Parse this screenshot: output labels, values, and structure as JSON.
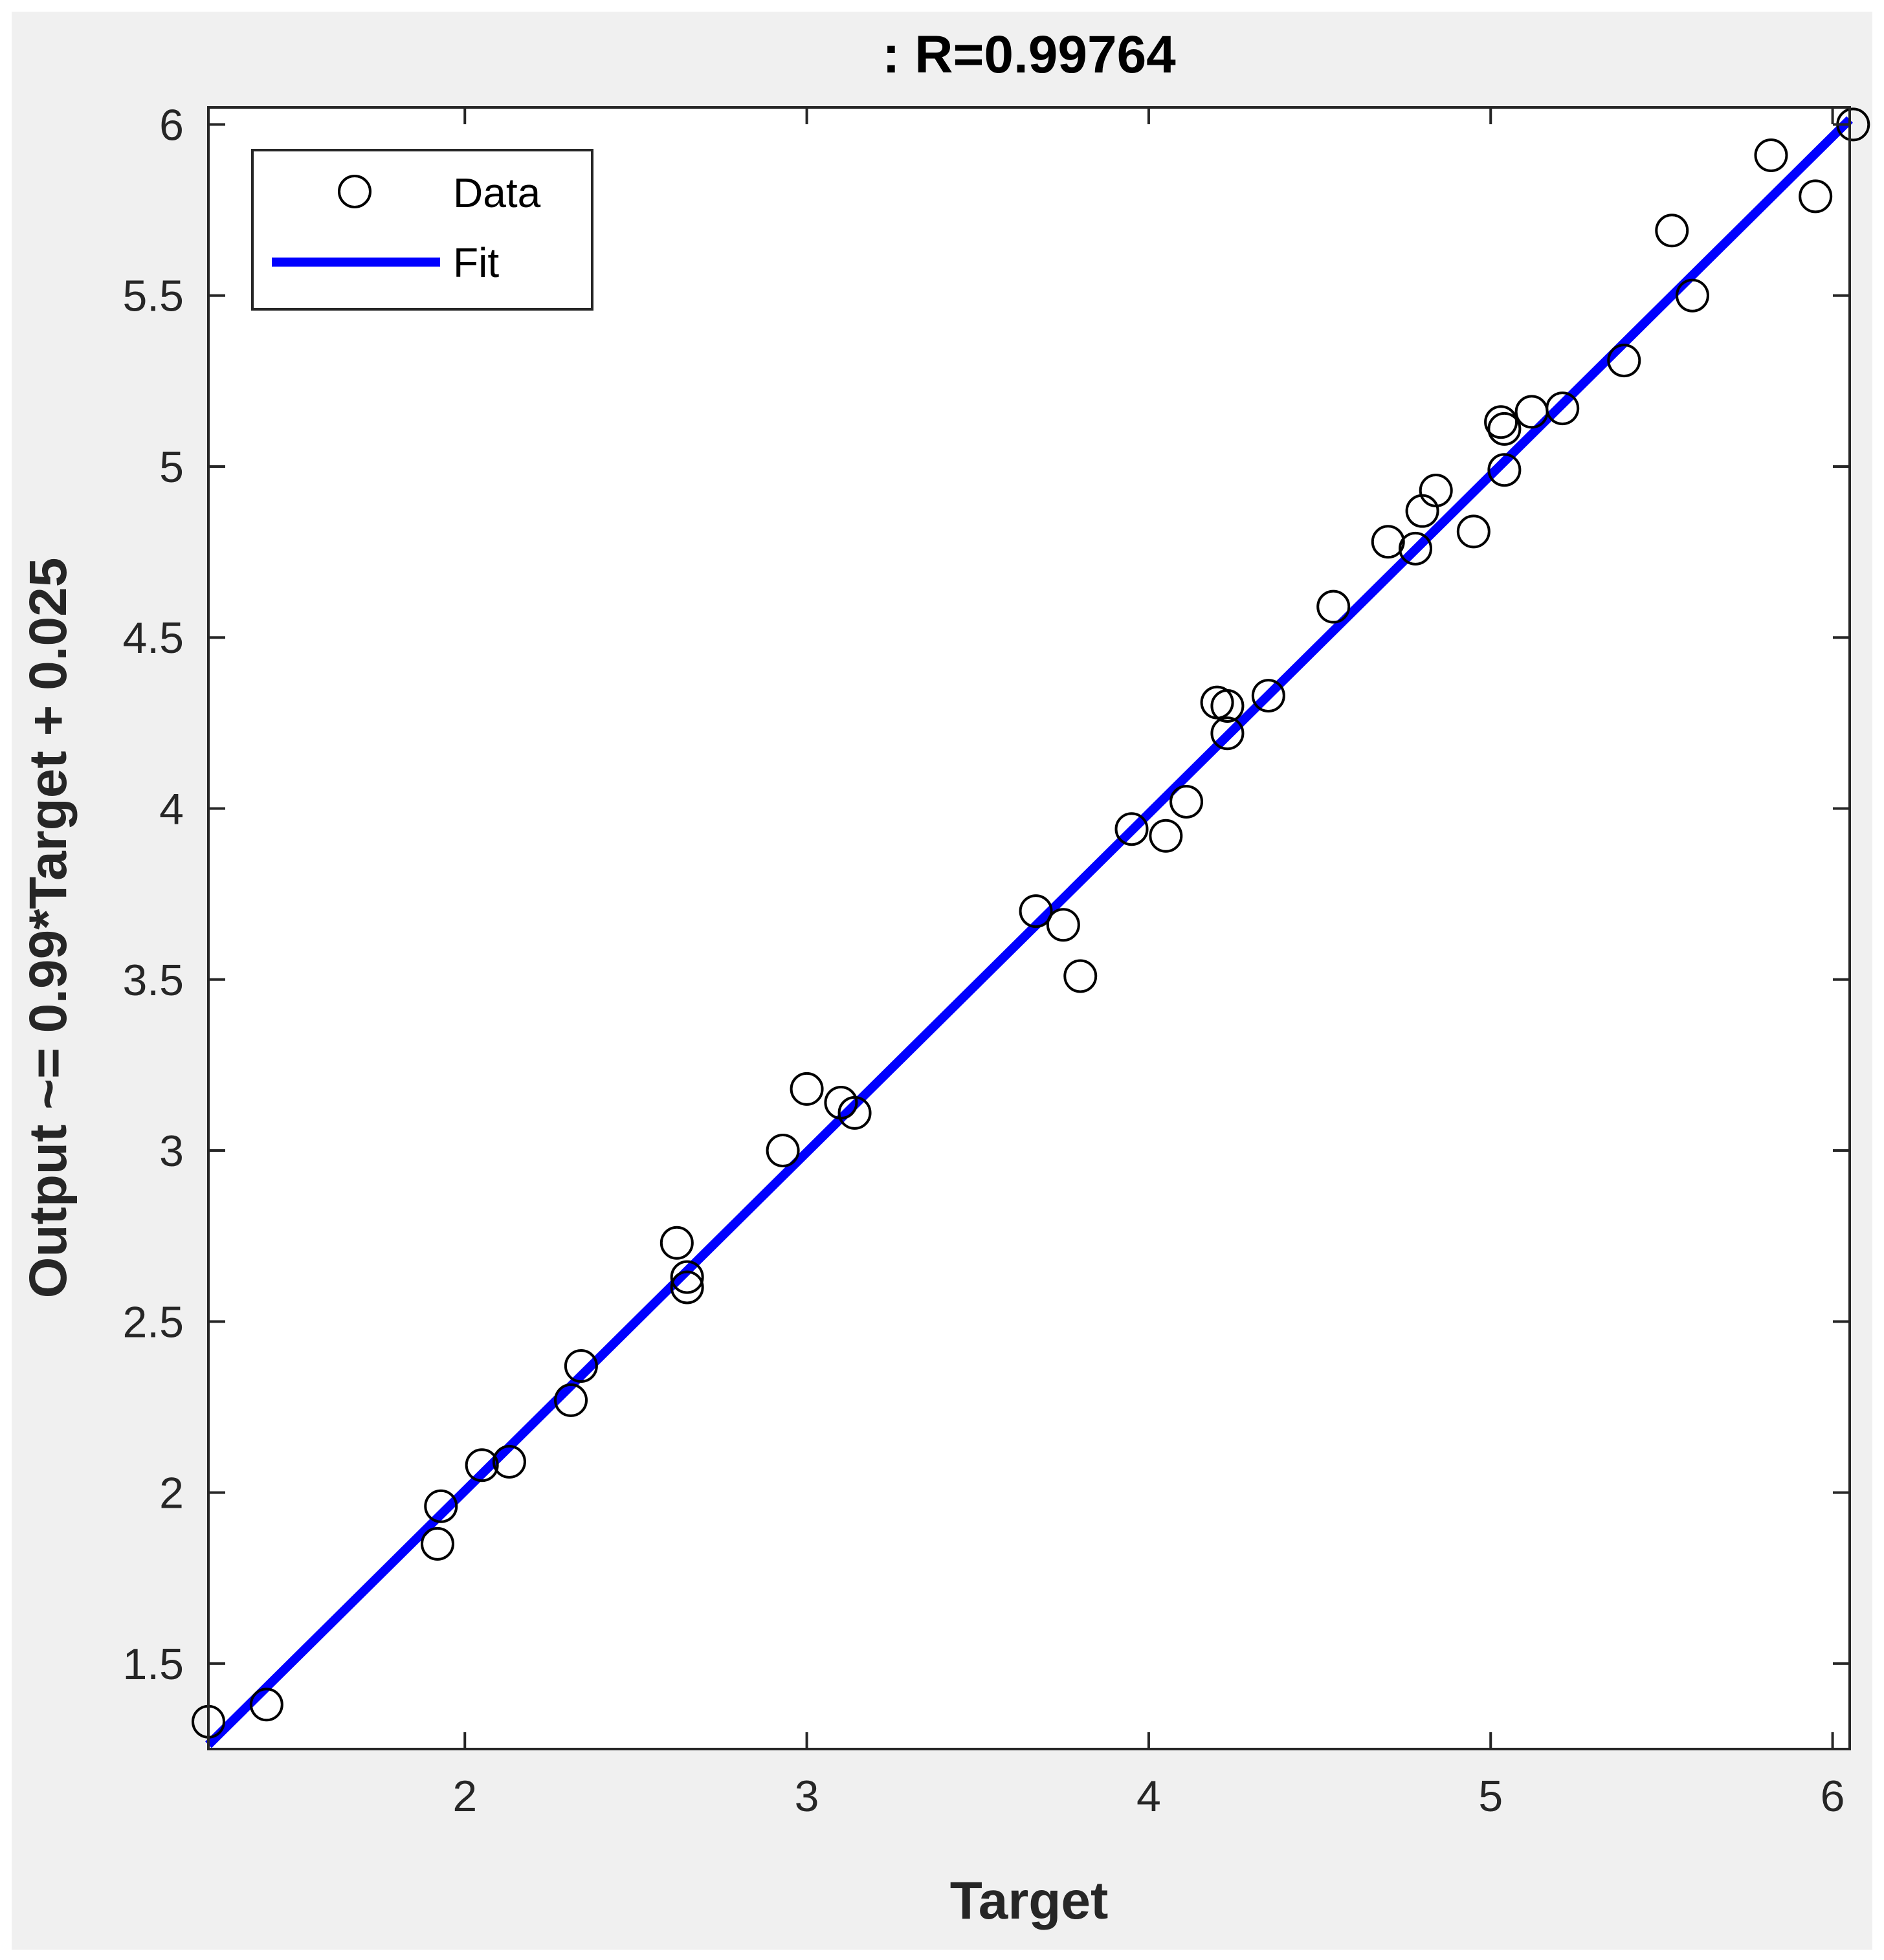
{
  "chart_data": {
    "type": "scatter",
    "title": ": R=0.99764",
    "xlabel": "Target",
    "ylabel": "Output ~= 0.99*Target + 0.025",
    "xlim": [
      1.25,
      6.05
    ],
    "ylim": [
      1.25,
      6.05
    ],
    "xticks": [
      2,
      3,
      4,
      5,
      6
    ],
    "yticks": [
      1.5,
      2,
      2.5,
      3,
      3.5,
      4,
      4.5,
      5,
      5.5,
      6
    ],
    "xtick_labels": [
      "2",
      "3",
      "4",
      "5",
      "6"
    ],
    "ytick_labels": [
      "1.5",
      "2",
      "2.5",
      "3",
      "3.5",
      "4",
      "4.5",
      "5",
      "5.5",
      "6"
    ],
    "grid": false,
    "legend": {
      "position": "top-left",
      "entries": [
        "Data",
        "Fit"
      ]
    },
    "series": [
      {
        "name": "Data",
        "kind": "scatter",
        "marker": "open-circle",
        "color": "#000000",
        "points": [
          [
            1.25,
            1.33
          ],
          [
            1.42,
            1.38
          ],
          [
            1.92,
            1.85
          ],
          [
            1.93,
            1.96
          ],
          [
            2.05,
            2.08
          ],
          [
            2.13,
            2.09
          ],
          [
            2.31,
            2.27
          ],
          [
            2.34,
            2.37
          ],
          [
            2.62,
            2.73
          ],
          [
            2.65,
            2.6
          ],
          [
            2.65,
            2.63
          ],
          [
            2.93,
            3.0
          ],
          [
            3.0,
            3.18
          ],
          [
            3.1,
            3.14
          ],
          [
            3.14,
            3.11
          ],
          [
            3.67,
            3.7
          ],
          [
            3.75,
            3.66
          ],
          [
            3.8,
            3.51
          ],
          [
            3.95,
            3.94
          ],
          [
            4.05,
            3.92
          ],
          [
            4.11,
            4.02
          ],
          [
            4.2,
            4.31
          ],
          [
            4.23,
            4.3
          ],
          [
            4.23,
            4.22
          ],
          [
            4.35,
            4.33
          ],
          [
            4.54,
            4.59
          ],
          [
            4.7,
            4.78
          ],
          [
            4.78,
            4.76
          ],
          [
            4.8,
            4.87
          ],
          [
            4.84,
            4.93
          ],
          [
            4.95,
            4.81
          ],
          [
            5.03,
            5.13
          ],
          [
            5.04,
            5.11
          ],
          [
            5.04,
            4.99
          ],
          [
            5.12,
            5.16
          ],
          [
            5.21,
            5.17
          ],
          [
            5.39,
            5.31
          ],
          [
            5.53,
            5.69
          ],
          [
            5.59,
            5.5
          ],
          [
            5.82,
            5.91
          ],
          [
            5.95,
            5.79
          ],
          [
            6.06,
            6.0
          ]
        ]
      },
      {
        "name": "Fit",
        "kind": "line",
        "color": "#0000ff",
        "slope": 0.99,
        "intercept": 0.025
      }
    ]
  }
}
